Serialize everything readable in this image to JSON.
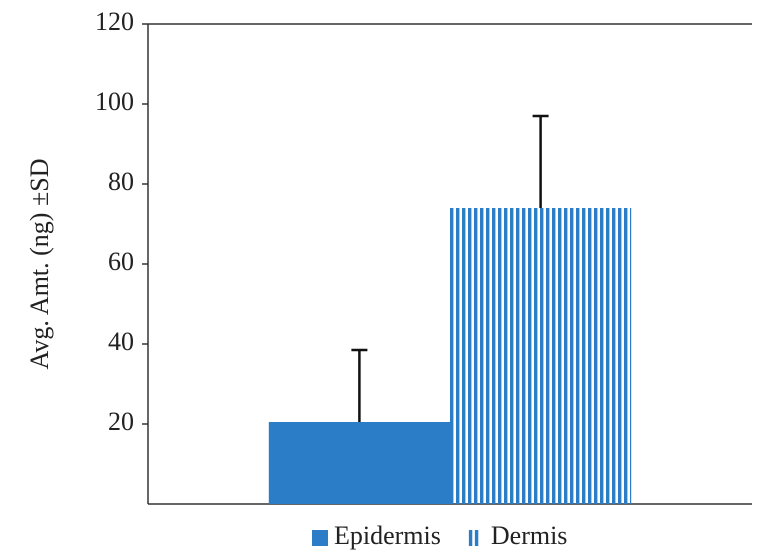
{
  "chart_data": {
    "type": "bar",
    "y_label": "Avg. Amt. (ng)  ±SD",
    "categories": [
      null
    ],
    "series": [
      {
        "name": "Epidermis",
        "color": "#2a7dc6",
        "fill": "solid",
        "values": [
          20.5
        ],
        "errors": [
          18
        ]
      },
      {
        "name": "Dermis",
        "color": "#2a7dc6",
        "fill": "vertical-stripes",
        "values": [
          74
        ],
        "errors": [
          23
        ]
      }
    ],
    "ylim": [
      0,
      120
    ],
    "yticks": [
      20,
      40,
      60,
      80,
      100,
      120
    ],
    "grid": false,
    "legend": "bottom"
  }
}
